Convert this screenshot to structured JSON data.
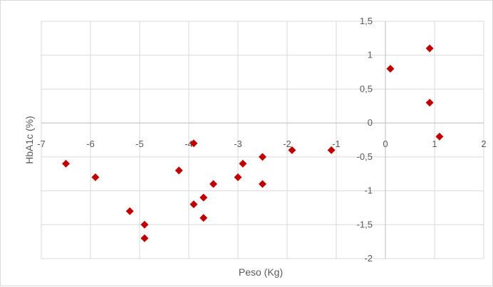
{
  "chart_data": {
    "type": "scatter",
    "title": "",
    "xlabel": "Peso (Kg)",
    "ylabel": "HbA1c (%)",
    "xlim": [
      -7,
      2
    ],
    "ylim": [
      -2,
      1.5
    ],
    "x_tick_labels": [
      "-7",
      "-6",
      "-5",
      "-4",
      "-3",
      "-2",
      "-1",
      "0",
      "1",
      "2"
    ],
    "y_tick_labels": [
      "-2",
      "-1,5",
      "-1",
      "-0,5",
      "0",
      "0,5",
      "1",
      "1,5"
    ],
    "grid": true,
    "marker": "diamond",
    "marker_color": "#c00000",
    "gridline_color": "#d9d9d9",
    "axis_color": "#bfbfbf",
    "series": [
      {
        "x": [
          -6.5,
          -5.9,
          -5.2,
          -4.9,
          -4.9,
          -4.2,
          -3.9,
          -3.9,
          -3.7,
          -3.7,
          -3.5,
          -3.0,
          -2.9,
          -2.5,
          -2.5,
          -1.9,
          -1.1,
          0.1,
          0.9,
          0.9,
          1.1
        ],
        "y": [
          -0.6,
          -0.8,
          -1.3,
          -1.5,
          -1.7,
          -0.7,
          -0.3,
          -1.2,
          -1.1,
          -1.4,
          -0.9,
          -0.8,
          -0.6,
          -0.5,
          -0.9,
          -0.4,
          -0.4,
          0.8,
          1.1,
          0.3,
          -0.2
        ]
      }
    ]
  }
}
